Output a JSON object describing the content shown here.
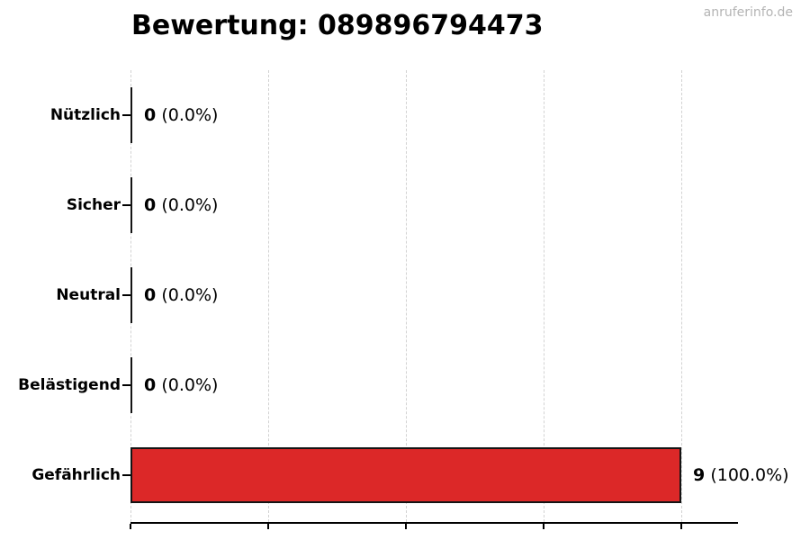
{
  "page": {
    "background": "#ffffff",
    "watermark": "anruferinfo.de"
  },
  "chart_data": {
    "type": "bar",
    "orientation": "horizontal",
    "title": "Bewertung: 089896794473",
    "categories": [
      "Nützlich",
      "Sicher",
      "Neutral",
      "Belästigend",
      "Gefährlich"
    ],
    "values": [
      0,
      0,
      0,
      0,
      9
    ],
    "value_labels": [
      {
        "count": "0",
        "percent": "(0.0%)"
      },
      {
        "count": "0",
        "percent": "(0.0%)"
      },
      {
        "count": "0",
        "percent": "(0.0%)"
      },
      {
        "count": "0",
        "percent": "(0.0%)"
      },
      {
        "count": "9",
        "percent": "(100.0%)"
      }
    ],
    "xlim": [
      0,
      9
    ],
    "x_axis_tick_count": 5,
    "x_axis_tick_labels_visible": false,
    "grid": "vertical-dashed",
    "legend_position": "none",
    "bar_color": "#dc2828",
    "bar_border_color": "#141414",
    "zero_bar_color": "#141414",
    "grid_color": "#d2d2d2",
    "axis_color": "#000000",
    "watermark_color": "#b4b4b4"
  }
}
